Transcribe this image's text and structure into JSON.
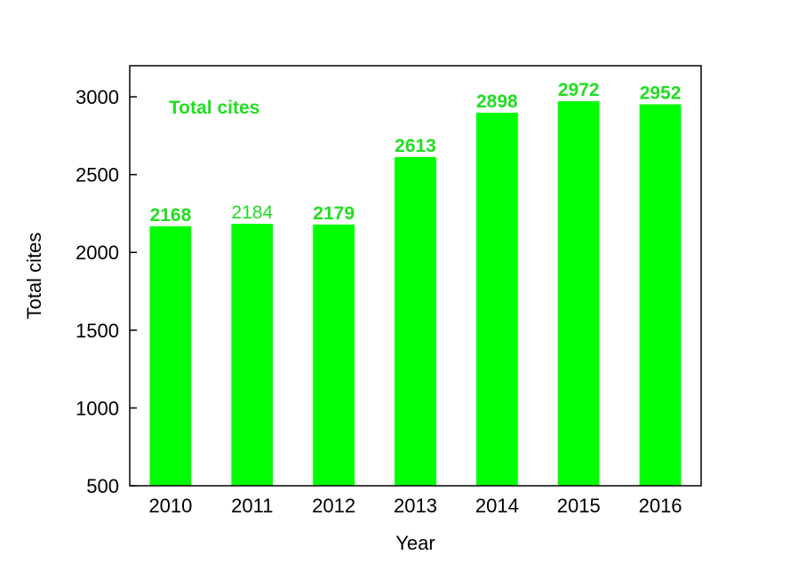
{
  "chart_data": {
    "type": "bar",
    "categories": [
      "2010",
      "2011",
      "2012",
      "2013",
      "2014",
      "2015",
      "2016"
    ],
    "series": [
      {
        "name": "Total cites",
        "values": [
          2168,
          2184,
          2179,
          2613,
          2898,
          2972,
          2952
        ]
      }
    ],
    "data_labels": [
      "2168",
      "2184",
      "2179",
      "2613",
      "2898",
      "2972",
      "2952"
    ],
    "title": "",
    "xlabel": "Year",
    "ylabel": "Total cites",
    "ylim": [
      500,
      3200
    ],
    "yticks": [
      500,
      1000,
      1500,
      2000,
      2500,
      3000
    ],
    "ytick_labels": [
      "500",
      "1000",
      "1500",
      "2000",
      "2500",
      "3000"
    ],
    "grid": false,
    "legend_text": "Total cites",
    "legend_position": "top-left",
    "bar_color": "#00ff00",
    "label_color": "#22dd22"
  }
}
